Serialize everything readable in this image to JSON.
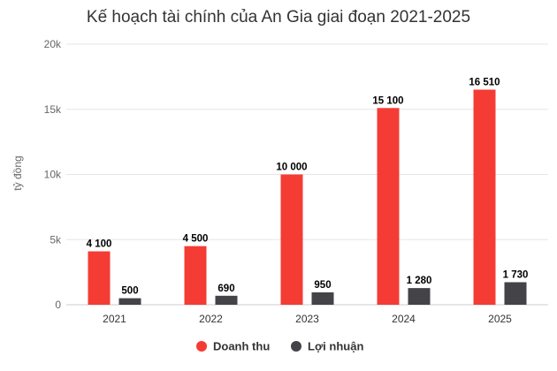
{
  "chart_data": {
    "type": "bar",
    "title": "Kế hoạch tài chính của An Gia giai đoạn 2021-2025",
    "xlabel": "",
    "ylabel": "tỷ đồng",
    "categories": [
      "2021",
      "2022",
      "2023",
      "2024",
      "2025"
    ],
    "ylim": [
      0,
      20000
    ],
    "yticks": [
      {
        "value": 0,
        "label": "0"
      },
      {
        "value": 5000,
        "label": "5k"
      },
      {
        "value": 10000,
        "label": "10k"
      },
      {
        "value": 15000,
        "label": "15k"
      },
      {
        "value": 20000,
        "label": "20k"
      }
    ],
    "grid": true,
    "legend_position": "bottom",
    "series": [
      {
        "name": "Doanh thu",
        "color": "#f43c34",
        "values": [
          4100,
          4500,
          10000,
          15100,
          16510
        ],
        "labels": [
          "4 100",
          "4 500",
          "10 000",
          "15 100",
          "16 510"
        ]
      },
      {
        "name": "Lợi nhuận",
        "color": "#434348",
        "values": [
          500,
          690,
          950,
          1280,
          1730
        ],
        "labels": [
          "500",
          "690",
          "950",
          "1 280",
          "1 730"
        ]
      }
    ]
  }
}
